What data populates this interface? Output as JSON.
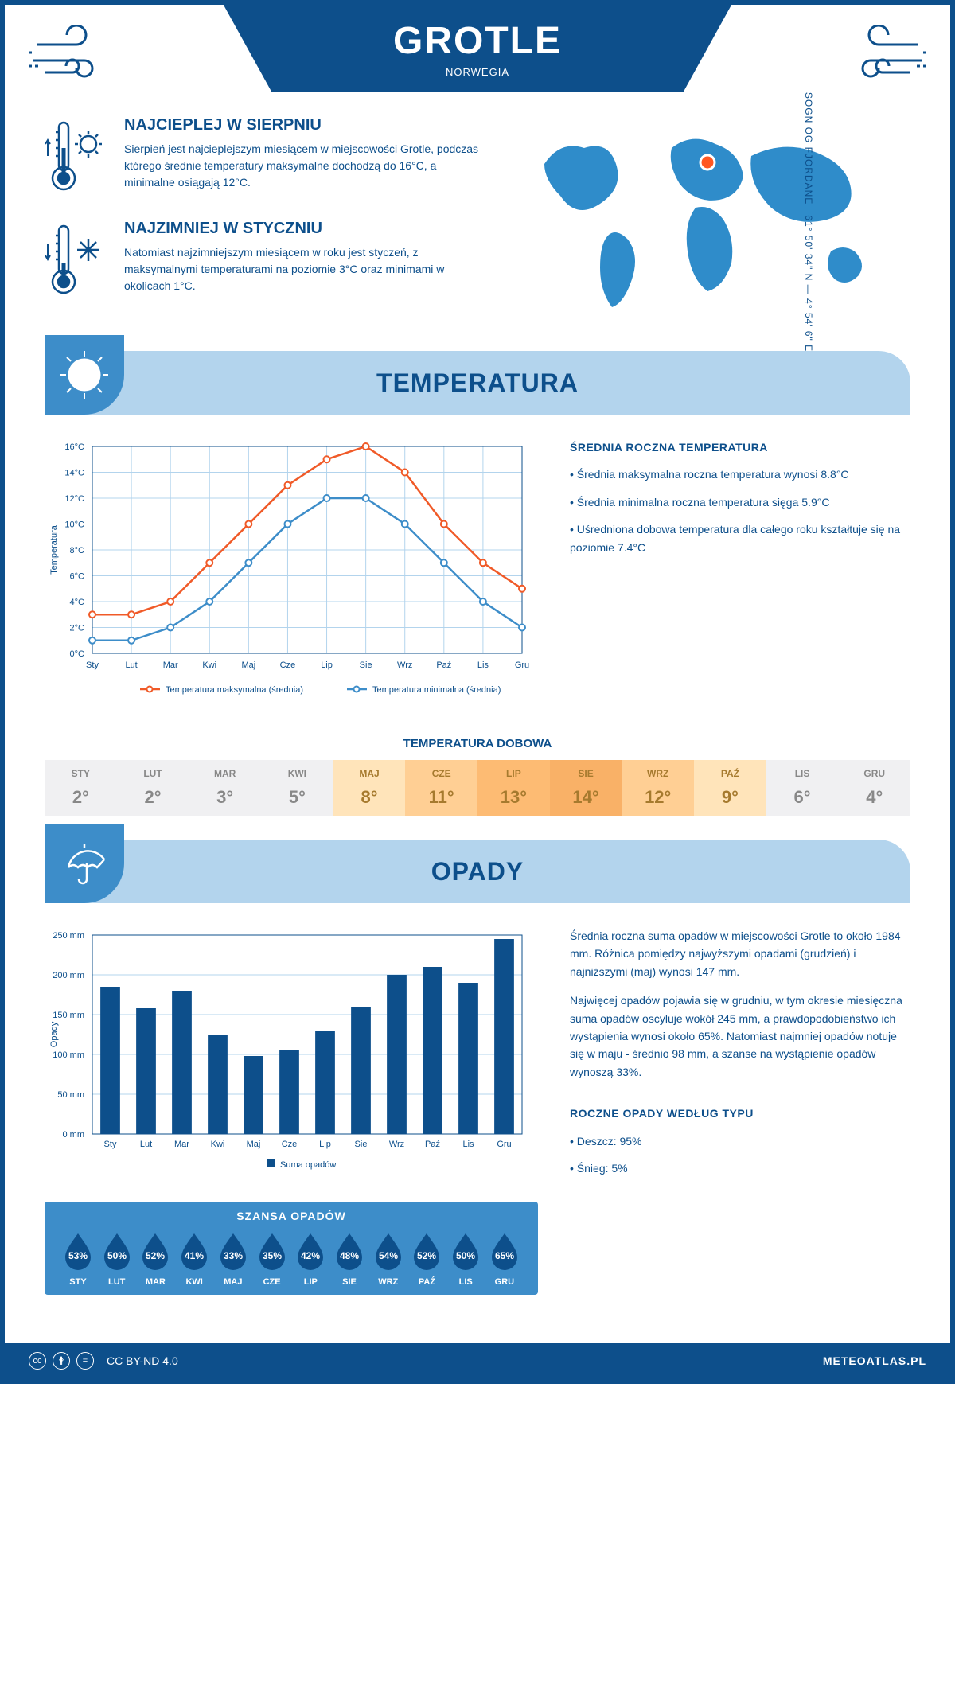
{
  "location": {
    "name": "GROTLE",
    "country": "NORWEGIA",
    "region": "SOGN OG FJORDANE",
    "coords": "61° 50' 34\" N — 4° 54' 6\" E"
  },
  "summaries": {
    "warm": {
      "title": "NAJCIEPLEJ W SIERPNIU",
      "text": "Sierpień jest najcieplejszym miesiącem w miejscowości Grotle, podczas którego średnie temperatury maksymalne dochodzą do 16°C, a minimalne osiągają 12°C."
    },
    "cold": {
      "title": "NAJZIMNIEJ W STYCZNIU",
      "text": "Natomiast najzimniejszym miesiącem w roku jest styczeń, z maksymalnymi temperaturami na poziomie 3°C oraz minimami w okolicach 1°C."
    }
  },
  "colors": {
    "primary": "#0d4f8b",
    "light": "#b3d4ed",
    "mid": "#3d8dc9",
    "max_line": "#f05a28",
    "min_line": "#3d8dc9",
    "grid": "#b3d4ed",
    "bar": "#0d4f8b"
  },
  "temperature": {
    "section_title": "TEMPERATURA",
    "chart": {
      "type": "line",
      "ylabel": "Temperatura",
      "months": [
        "Sty",
        "Lut",
        "Mar",
        "Kwi",
        "Maj",
        "Cze",
        "Lip",
        "Sie",
        "Wrz",
        "Paź",
        "Lis",
        "Gru"
      ],
      "max": {
        "label": "Temperatura maksymalna (średnia)",
        "color": "#f05a28",
        "values": [
          3,
          3,
          4,
          7,
          10,
          13,
          15,
          16,
          14,
          10,
          7,
          5
        ]
      },
      "min": {
        "label": "Temperatura minimalna (średnia)",
        "color": "#3d8dc9",
        "values": [
          1,
          1,
          2,
          4,
          7,
          10,
          12,
          12,
          10,
          7,
          4,
          2
        ]
      },
      "ymin": 0,
      "ymax": 16,
      "ystep": 2
    },
    "annual": {
      "title": "ŚREDNIA ROCZNA TEMPERATURA",
      "items": [
        "Średnia maksymalna roczna temperatura wynosi 8.8°C",
        "Średnia minimalna roczna temperatura sięga 5.9°C",
        "Uśredniona dobowa temperatura dla całego roku kształtuje się na poziomie 7.4°C"
      ]
    },
    "daily": {
      "title": "TEMPERATURA DOBOWA",
      "months": [
        "STY",
        "LUT",
        "MAR",
        "KWI",
        "MAJ",
        "CZE",
        "LIP",
        "SIE",
        "WRZ",
        "PAŹ",
        "LIS",
        "GRU"
      ],
      "values": [
        "2°",
        "2°",
        "3°",
        "5°",
        "8°",
        "11°",
        "13°",
        "14°",
        "12°",
        "9°",
        "6°",
        "4°"
      ],
      "bg_colors": [
        "#f0f0f2",
        "#f0f0f2",
        "#f0f0f2",
        "#f0f0f2",
        "#ffe4ba",
        "#ffcf94",
        "#fdbb73",
        "#f9b167",
        "#ffcf94",
        "#ffe4ba",
        "#f0f0f2",
        "#f0f0f2"
      ],
      "text_colors": [
        "#888",
        "#888",
        "#888",
        "#888",
        "#a67a2e",
        "#a67a2e",
        "#a67a2e",
        "#a67a2e",
        "#a67a2e",
        "#a67a2e",
        "#888",
        "#888"
      ]
    }
  },
  "precip": {
    "section_title": "OPADY",
    "chart": {
      "type": "bar",
      "ylabel": "Opady",
      "months": [
        "Sty",
        "Lut",
        "Mar",
        "Kwi",
        "Maj",
        "Cze",
        "Lip",
        "Sie",
        "Wrz",
        "Paź",
        "Lis",
        "Gru"
      ],
      "values": [
        185,
        158,
        180,
        125,
        98,
        105,
        130,
        160,
        200,
        210,
        190,
        245
      ],
      "legend": "Suma opadów",
      "ymin": 0,
      "ymax": 250,
      "ystep": 50,
      "bar_color": "#0d4f8b"
    },
    "text": {
      "p1": "Średnia roczna suma opadów w miejscowości Grotle to około 1984 mm. Różnica pomiędzy najwyższymi opadami (grudzień) i najniższymi (maj) wynosi 147 mm.",
      "p2": "Najwięcej opadów pojawia się w grudniu, w tym okresie miesięczna suma opadów oscyluje wokół 245 mm, a prawdopodobieństwo ich wystąpienia wynosi około 65%. Natomiast najmniej opadów notuje się w maju - średnio 98 mm, a szanse na wystąpienie opadów wynoszą 33%."
    },
    "chance": {
      "title": "SZANSA OPADÓW",
      "months": [
        "STY",
        "LUT",
        "MAR",
        "KWI",
        "MAJ",
        "CZE",
        "LIP",
        "SIE",
        "WRZ",
        "PAŹ",
        "LIS",
        "GRU"
      ],
      "values": [
        "53%",
        "50%",
        "52%",
        "41%",
        "33%",
        "35%",
        "42%",
        "48%",
        "54%",
        "52%",
        "50%",
        "65%"
      ]
    },
    "by_type": {
      "title": "ROCZNE OPADY WEDŁUG TYPU",
      "items": [
        "Deszcz: 95%",
        "Śnieg: 5%"
      ]
    }
  },
  "footer": {
    "license": "CC BY-ND 4.0",
    "site": "METEOATLAS.PL"
  }
}
